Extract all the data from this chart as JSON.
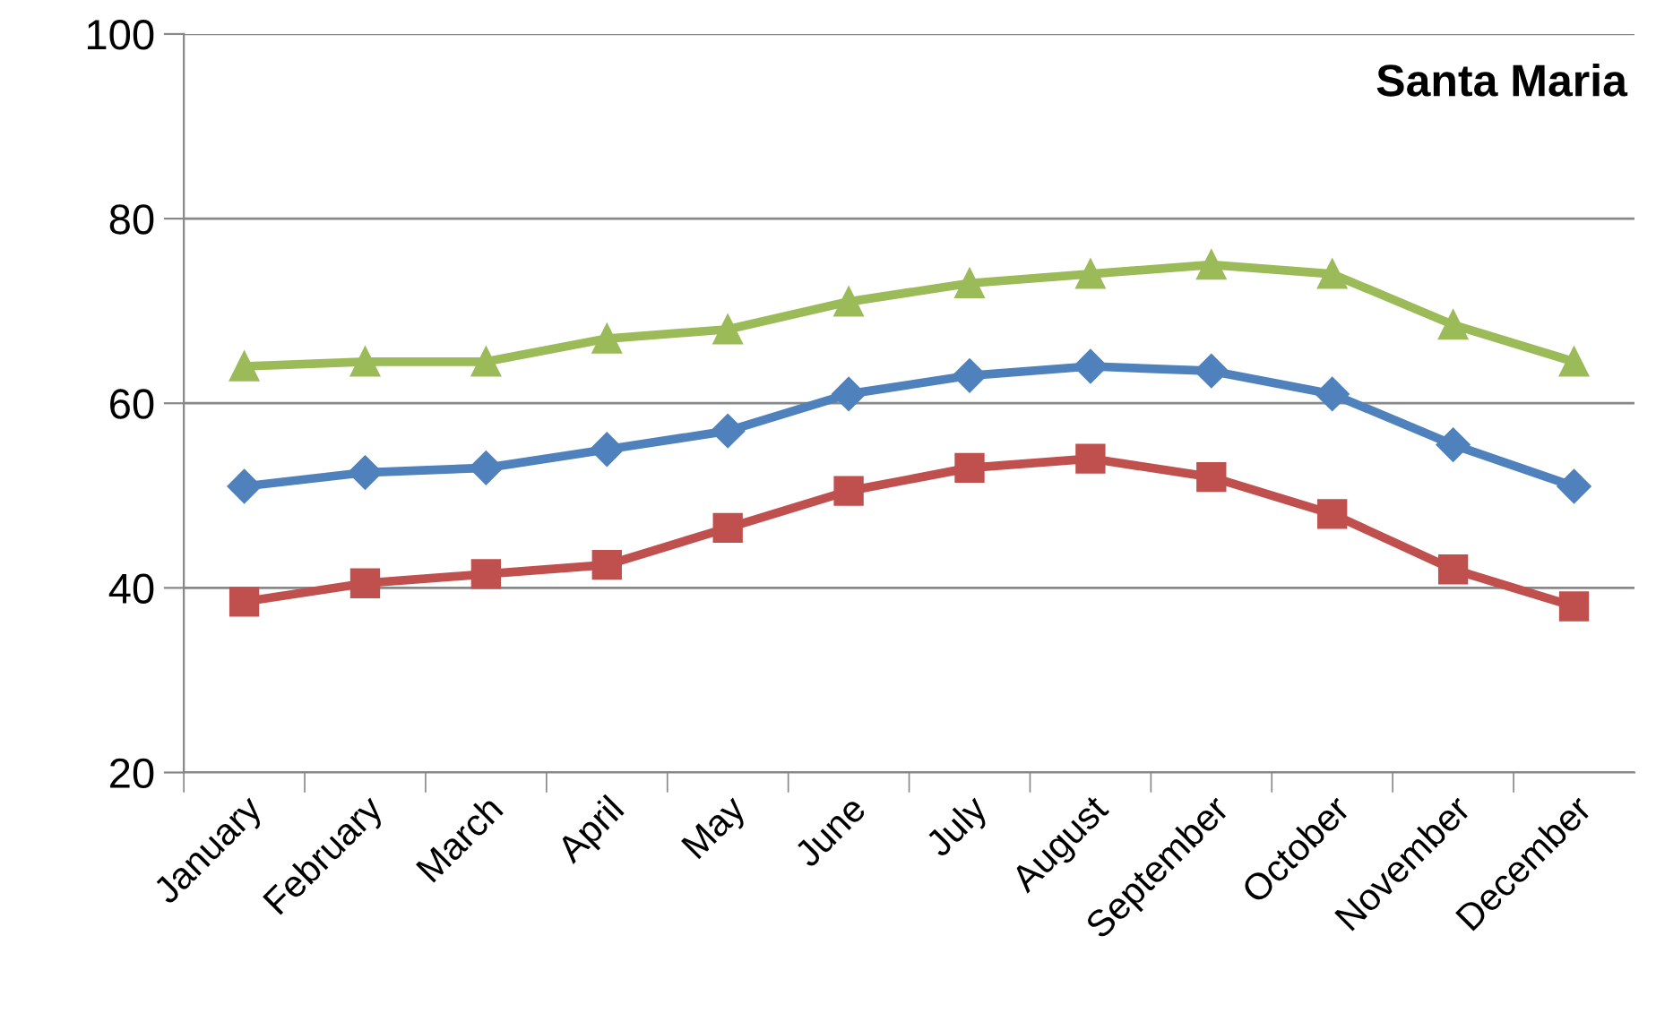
{
  "chart_data": {
    "type": "line",
    "title": "Santa Maria",
    "categories": [
      "January",
      "February",
      "March",
      "April",
      "May",
      "June",
      "July",
      "August",
      "September",
      "October",
      "November",
      "December"
    ],
    "series": [
      {
        "color": "#9bbb59",
        "marker": "triangle",
        "values": [
          64,
          64.5,
          64.5,
          67,
          68,
          71,
          73,
          74,
          75,
          74,
          68.5,
          64.5
        ]
      },
      {
        "color": "#4f81bd",
        "marker": "diamond",
        "values": [
          51,
          52.5,
          53,
          55,
          57,
          61,
          63,
          64,
          63.5,
          61,
          55.5,
          51
        ]
      },
      {
        "color": "#c0504d",
        "marker": "square",
        "values": [
          38.5,
          40.5,
          41.5,
          42.5,
          46.5,
          50.5,
          53,
          54,
          52,
          48,
          42,
          38
        ]
      }
    ],
    "ylim": [
      20,
      100
    ],
    "yticks": [
      20,
      40,
      60,
      80,
      100
    ],
    "grid": "y",
    "legend": false
  }
}
